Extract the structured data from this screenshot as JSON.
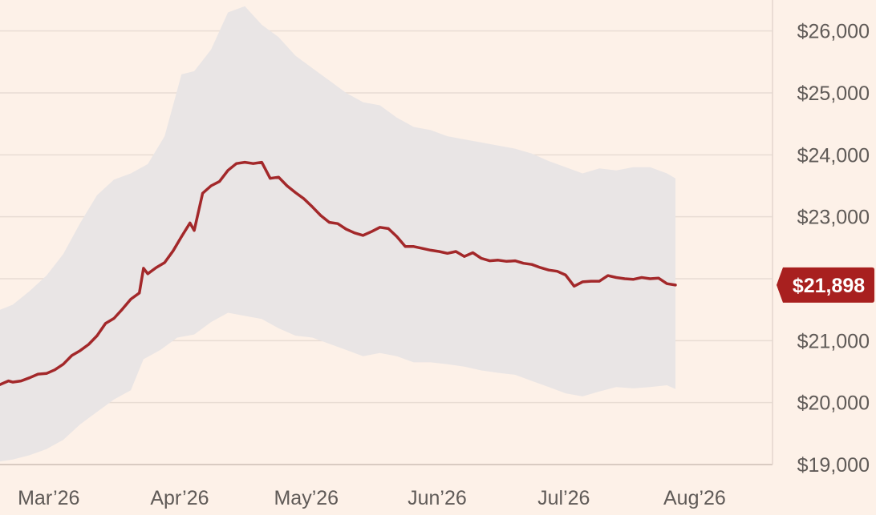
{
  "chart_data": {
    "type": "area",
    "title": "",
    "xlabel": "",
    "ylabel": "",
    "ylim": [
      19000,
      26500
    ],
    "x_domain": [
      "2026-02-26",
      "2026-08-28"
    ],
    "x_ticks": [
      {
        "label": "Mar’26",
        "date": "2026-03-01"
      },
      {
        "label": "Apr’26",
        "date": "2026-04-01"
      },
      {
        "label": "May’26",
        "date": "2026-05-01"
      },
      {
        "label": "Jun’26",
        "date": "2026-06-01"
      },
      {
        "label": "Jul’26",
        "date": "2026-07-01"
      },
      {
        "label": "Aug’26",
        "date": "2026-08-01"
      }
    ],
    "y_ticks": [
      {
        "label": "$19,000",
        "value": 19000
      },
      {
        "label": "$20,000",
        "value": 20000
      },
      {
        "label": "$21,000",
        "value": 21000
      },
      {
        "label": "$23,000",
        "value": 23000
      },
      {
        "label": "$24,000",
        "value": 24000
      },
      {
        "label": "$25,000",
        "value": 25000
      },
      {
        "label": "$26,000",
        "value": 26000
      }
    ],
    "grid": true,
    "colors": {
      "background": "#fdf1e8",
      "band": "#e9e5e5",
      "line": "#a3282a",
      "badge": "#a8201f",
      "grid": "#e8dcd4"
    },
    "current_value": {
      "label": "$21,898",
      "value": 21898
    },
    "series": [
      {
        "kind": "line",
        "points": [
          [
            "2026-02-26",
            20290
          ],
          [
            "2026-02-28",
            20350
          ],
          [
            "2026-03-01",
            20330
          ],
          [
            "2026-03-03",
            20350
          ],
          [
            "2026-03-05",
            20400
          ],
          [
            "2026-03-07",
            20460
          ],
          [
            "2026-03-09",
            20470
          ],
          [
            "2026-03-11",
            20530
          ],
          [
            "2026-03-13",
            20620
          ],
          [
            "2026-03-15",
            20760
          ],
          [
            "2026-03-17",
            20840
          ],
          [
            "2026-03-19",
            20940
          ],
          [
            "2026-03-21",
            21080
          ],
          [
            "2026-03-23",
            21280
          ],
          [
            "2026-03-25",
            21360
          ],
          [
            "2026-03-27",
            21510
          ],
          [
            "2026-03-29",
            21670
          ],
          [
            "2026-03-31",
            21770
          ],
          [
            "2026-04-01",
            22170
          ],
          [
            "2026-04-02",
            22080
          ],
          [
            "2026-04-04",
            22180
          ],
          [
            "2026-04-06",
            22260
          ],
          [
            "2026-04-08",
            22450
          ],
          [
            "2026-04-10",
            22680
          ],
          [
            "2026-04-12",
            22900
          ],
          [
            "2026-04-13",
            22780
          ],
          [
            "2026-04-15",
            23380
          ],
          [
            "2026-04-17",
            23500
          ],
          [
            "2026-04-19",
            23570
          ],
          [
            "2026-04-21",
            23750
          ],
          [
            "2026-04-23",
            23860
          ],
          [
            "2026-04-25",
            23880
          ],
          [
            "2026-04-27",
            23860
          ],
          [
            "2026-04-29",
            23880
          ],
          [
            "2026-05-01",
            23620
          ],
          [
            "2026-05-03",
            23640
          ],
          [
            "2026-05-05",
            23500
          ],
          [
            "2026-05-07",
            23390
          ],
          [
            "2026-05-09",
            23290
          ],
          [
            "2026-05-11",
            23160
          ],
          [
            "2026-05-13",
            23020
          ],
          [
            "2026-05-15",
            22910
          ],
          [
            "2026-05-17",
            22890
          ],
          [
            "2026-05-19",
            22800
          ],
          [
            "2026-05-21",
            22740
          ],
          [
            "2026-05-23",
            22700
          ],
          [
            "2026-05-25",
            22760
          ],
          [
            "2026-05-27",
            22830
          ],
          [
            "2026-05-29",
            22810
          ],
          [
            "2026-05-31",
            22680
          ],
          [
            "2026-06-02",
            22520
          ],
          [
            "2026-06-04",
            22520
          ],
          [
            "2026-06-06",
            22490
          ],
          [
            "2026-06-08",
            22460
          ],
          [
            "2026-06-10",
            22440
          ],
          [
            "2026-06-12",
            22410
          ],
          [
            "2026-06-14",
            22440
          ],
          [
            "2026-06-16",
            22360
          ],
          [
            "2026-06-18",
            22420
          ],
          [
            "2026-06-20",
            22330
          ],
          [
            "2026-06-22",
            22290
          ],
          [
            "2026-06-24",
            22300
          ],
          [
            "2026-06-26",
            22280
          ],
          [
            "2026-06-28",
            22290
          ],
          [
            "2026-06-30",
            22250
          ],
          [
            "2026-07-02",
            22230
          ],
          [
            "2026-07-04",
            22180
          ],
          [
            "2026-07-06",
            22140
          ],
          [
            "2026-07-08",
            22120
          ],
          [
            "2026-07-10",
            22060
          ],
          [
            "2026-07-12",
            21880
          ],
          [
            "2026-07-14",
            21950
          ],
          [
            "2026-07-16",
            21960
          ],
          [
            "2026-07-18",
            21960
          ],
          [
            "2026-07-20",
            22050
          ],
          [
            "2026-07-22",
            22020
          ],
          [
            "2026-07-24",
            22000
          ],
          [
            "2026-07-26",
            21990
          ],
          [
            "2026-07-28",
            22020
          ],
          [
            "2026-07-30",
            22000
          ],
          [
            "2026-08-01",
            22010
          ],
          [
            "2026-08-03",
            21920
          ],
          [
            "2026-08-05",
            21898
          ]
        ]
      },
      {
        "kind": "band",
        "upper": [
          [
            "2026-02-26",
            21500
          ],
          [
            "2026-03-01",
            21580
          ],
          [
            "2026-03-05",
            21800
          ],
          [
            "2026-03-09",
            22050
          ],
          [
            "2026-03-13",
            22400
          ],
          [
            "2026-03-17",
            22900
          ],
          [
            "2026-03-21",
            23350
          ],
          [
            "2026-03-25",
            23600
          ],
          [
            "2026-03-29",
            23700
          ],
          [
            "2026-04-02",
            23850
          ],
          [
            "2026-04-06",
            24300
          ],
          [
            "2026-04-10",
            25300
          ],
          [
            "2026-04-13",
            25350
          ],
          [
            "2026-04-17",
            25700
          ],
          [
            "2026-04-21",
            26300
          ],
          [
            "2026-04-25",
            26400
          ],
          [
            "2026-04-29",
            26100
          ],
          [
            "2026-05-03",
            25900
          ],
          [
            "2026-05-07",
            25600
          ],
          [
            "2026-05-11",
            25400
          ],
          [
            "2026-05-15",
            25200
          ],
          [
            "2026-05-19",
            25000
          ],
          [
            "2026-05-23",
            24850
          ],
          [
            "2026-05-27",
            24800
          ],
          [
            "2026-05-31",
            24600
          ],
          [
            "2026-06-04",
            24450
          ],
          [
            "2026-06-08",
            24400
          ],
          [
            "2026-06-12",
            24300
          ],
          [
            "2026-06-16",
            24250
          ],
          [
            "2026-06-20",
            24200
          ],
          [
            "2026-06-24",
            24150
          ],
          [
            "2026-06-28",
            24100
          ],
          [
            "2026-07-02",
            24020
          ],
          [
            "2026-07-06",
            23900
          ],
          [
            "2026-07-10",
            23800
          ],
          [
            "2026-07-14",
            23700
          ],
          [
            "2026-07-18",
            23780
          ],
          [
            "2026-07-22",
            23750
          ],
          [
            "2026-07-26",
            23800
          ],
          [
            "2026-07-30",
            23800
          ],
          [
            "2026-08-03",
            23700
          ],
          [
            "2026-08-05",
            23620
          ]
        ],
        "lower": [
          [
            "2026-02-26",
            19050
          ],
          [
            "2026-03-01",
            19080
          ],
          [
            "2026-03-05",
            19150
          ],
          [
            "2026-03-09",
            19250
          ],
          [
            "2026-03-13",
            19400
          ],
          [
            "2026-03-17",
            19650
          ],
          [
            "2026-03-21",
            19850
          ],
          [
            "2026-03-25",
            20050
          ],
          [
            "2026-03-29",
            20200
          ],
          [
            "2026-04-01",
            20700
          ],
          [
            "2026-04-05",
            20850
          ],
          [
            "2026-04-09",
            21050
          ],
          [
            "2026-04-13",
            21100
          ],
          [
            "2026-04-17",
            21300
          ],
          [
            "2026-04-21",
            21450
          ],
          [
            "2026-04-25",
            21400
          ],
          [
            "2026-04-29",
            21350
          ],
          [
            "2026-05-03",
            21200
          ],
          [
            "2026-05-07",
            21080
          ],
          [
            "2026-05-11",
            21050
          ],
          [
            "2026-05-15",
            20950
          ],
          [
            "2026-05-19",
            20850
          ],
          [
            "2026-05-23",
            20750
          ],
          [
            "2026-05-27",
            20800
          ],
          [
            "2026-05-31",
            20750
          ],
          [
            "2026-06-04",
            20650
          ],
          [
            "2026-06-08",
            20650
          ],
          [
            "2026-06-12",
            20620
          ],
          [
            "2026-06-16",
            20580
          ],
          [
            "2026-06-20",
            20520
          ],
          [
            "2026-06-24",
            20480
          ],
          [
            "2026-06-28",
            20450
          ],
          [
            "2026-07-02",
            20350
          ],
          [
            "2026-07-06",
            20250
          ],
          [
            "2026-07-10",
            20150
          ],
          [
            "2026-07-14",
            20100
          ],
          [
            "2026-07-18",
            20180
          ],
          [
            "2026-07-22",
            20250
          ],
          [
            "2026-07-26",
            20230
          ],
          [
            "2026-07-30",
            20250
          ],
          [
            "2026-08-03",
            20280
          ],
          [
            "2026-08-05",
            20220
          ]
        ]
      }
    ]
  }
}
